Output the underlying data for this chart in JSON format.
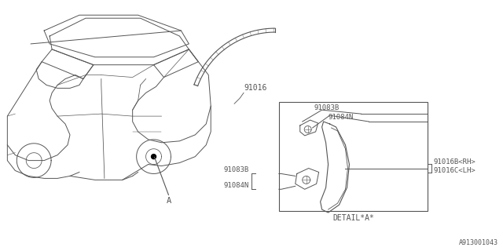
{
  "bg_color": "#ffffff",
  "line_color": "#555555",
  "fig_width": 6.4,
  "fig_height": 3.2,
  "dpi": 100,
  "watermark": "A913001043",
  "label_91016": "91016",
  "label_A": "A",
  "label_detail": "DETAIL*A*",
  "label_91083B": "91083B",
  "label_91084N": "91084N",
  "label_91016B": "91016B<RH>",
  "label_91016C": "91016C<LH>"
}
